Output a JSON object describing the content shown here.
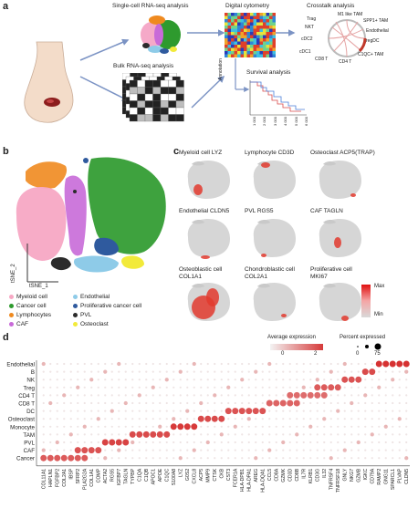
{
  "panels": {
    "a": "a",
    "b": "b",
    "c": "c",
    "d": "d"
  },
  "panel_a": {
    "scrna_title": "Single-cell RNA-seq analysis",
    "bulk_title": "Bulk RNA-seq analysis",
    "cytometry_title": "Digital cytometry",
    "annotation_label": "Annotation",
    "survival_title": "Survival analysis",
    "survival_ticks": [
      "1 000",
      "2 000",
      "3 000",
      "4 000",
      "5 000",
      "6 000"
    ],
    "crosstalk_title": "Crosstalk analysis",
    "crosstalk_labels": {
      "m1": "M1 like TAM",
      "trag": "Trag",
      "spp1": "SPP1+ TAM",
      "nkt": "NKT",
      "endothelial": "Endothelial",
      "cdc2": "cDC2",
      "regdc": "regDC",
      "cdc1": "cDC1",
      "c1qc": "C1QC+ TAM",
      "cd8": "CD8 T",
      "cd4": "CD4 T"
    }
  },
  "panel_b": {
    "ylabel": "tSNE_2",
    "xlabel": "tSNE_1",
    "legend": [
      {
        "name": "Myeloid cell",
        "color": "#f7a8c4"
      },
      {
        "name": "Cancer cell",
        "color": "#2e9a2e"
      },
      {
        "name": "Lymphocytes",
        "color": "#ef8a1f"
      },
      {
        "name": "CAF",
        "color": "#c86ad8"
      },
      {
        "name": "Endothelial",
        "color": "#8ecbe8"
      },
      {
        "name": "Proliferative cancer cell",
        "color": "#2f5a9e"
      },
      {
        "name": "PVL",
        "color": "#2b2b2b"
      },
      {
        "name": "Osteoclast",
        "color": "#f2ea3a"
      }
    ]
  },
  "panel_c": {
    "maps": [
      {
        "title": "Myeloid cell LYZ"
      },
      {
        "title": "Lymphocyte CD3D"
      },
      {
        "title": "Osteoclast ACP5(TRAP)"
      },
      {
        "title": "Endothelial CLDN5"
      },
      {
        "title": "PVL RGS5"
      },
      {
        "title": "CAF TAGLN"
      },
      {
        "title": "Osteoblastic cell\nCOL1A1"
      },
      {
        "title": "Chondroblastic cell\nCOL2A1"
      },
      {
        "title": "Proliferative cell\nMKI67"
      }
    ],
    "scale_max": "Max",
    "scale_min": "Min"
  },
  "chart_data": {
    "type": "dotplot",
    "title": "",
    "color_legend_title": "Average expression",
    "color_ticks": [
      "0",
      "2"
    ],
    "size_legend_title": "Percent expressed",
    "size_ticks": [
      "0",
      "75"
    ],
    "rows": [
      "Endothelial",
      "B",
      "NK",
      "Treg",
      "CD4 T",
      "CD8 T",
      "DC",
      "Osteoclast",
      "Monocyte",
      "TAM",
      "PVL",
      "CAF",
      "Cancer"
    ],
    "genes": [
      "COL11A1",
      "HAPLN1",
      "FGFBP2",
      "COL2A1",
      "IBSP",
      "SFRP2",
      "PLA2G2A",
      "COL1A1",
      "COMP",
      "ACTA2",
      "RGS5",
      "IGFBP7",
      "TAGLN",
      "TYPBP",
      "C1QA",
      "C1QB",
      "APOC1",
      "APOE",
      "C1QC",
      "S100A8",
      "LYZ",
      "G0S2",
      "CXCL8",
      "ACP5",
      "MMP9",
      "CTSK",
      "CKB",
      "CST3",
      "FCER1A",
      "HLA-DPB1",
      "HLA-DPA1",
      "AREG",
      "HLA-DQA1",
      "CCL5",
      "CD8A",
      "GZMK",
      "CD3D",
      "CD8B",
      "IL7R",
      "KLRB1",
      "CD3G",
      "IL32",
      "TNFRSF4",
      "TNFRSF18",
      "GNLY",
      "NKG7",
      "GZMB",
      "IGKC",
      "CD79A",
      "RAMP2",
      "GNG11",
      "SPARCL1",
      "PLVAP",
      "CLDN5"
    ],
    "blocks": [
      {
        "row": "Cancer",
        "genes": [
          0,
          6
        ],
        "value": 1.8
      },
      {
        "row": "CAF",
        "genes": [
          5,
          8
        ],
        "value": 1.9
      },
      {
        "row": "PVL",
        "genes": [
          9,
          12
        ],
        "value": 2.1
      },
      {
        "row": "TAM",
        "genes": [
          13,
          18
        ],
        "value": 2.0
      },
      {
        "row": "Monocyte",
        "genes": [
          19,
          22
        ],
        "value": 2.2
      },
      {
        "row": "Osteoclast",
        "genes": [
          23,
          26
        ],
        "value": 2.0
      },
      {
        "row": "DC",
        "genes": [
          27,
          32
        ],
        "value": 1.9
      },
      {
        "row": "CD8 T",
        "genes": [
          33,
          37
        ],
        "value": 1.7
      },
      {
        "row": "CD4 T",
        "genes": [
          36,
          41
        ],
        "value": 1.6
      },
      {
        "row": "Treg",
        "genes": [
          40,
          43
        ],
        "value": 1.8
      },
      {
        "row": "NK",
        "genes": [
          44,
          46
        ],
        "value": 1.9
      },
      {
        "row": "B",
        "genes": [
          47,
          48
        ],
        "value": 2.0
      },
      {
        "row": "Endothelial",
        "genes": [
          49,
          53
        ],
        "value": 2.3
      }
    ]
  }
}
